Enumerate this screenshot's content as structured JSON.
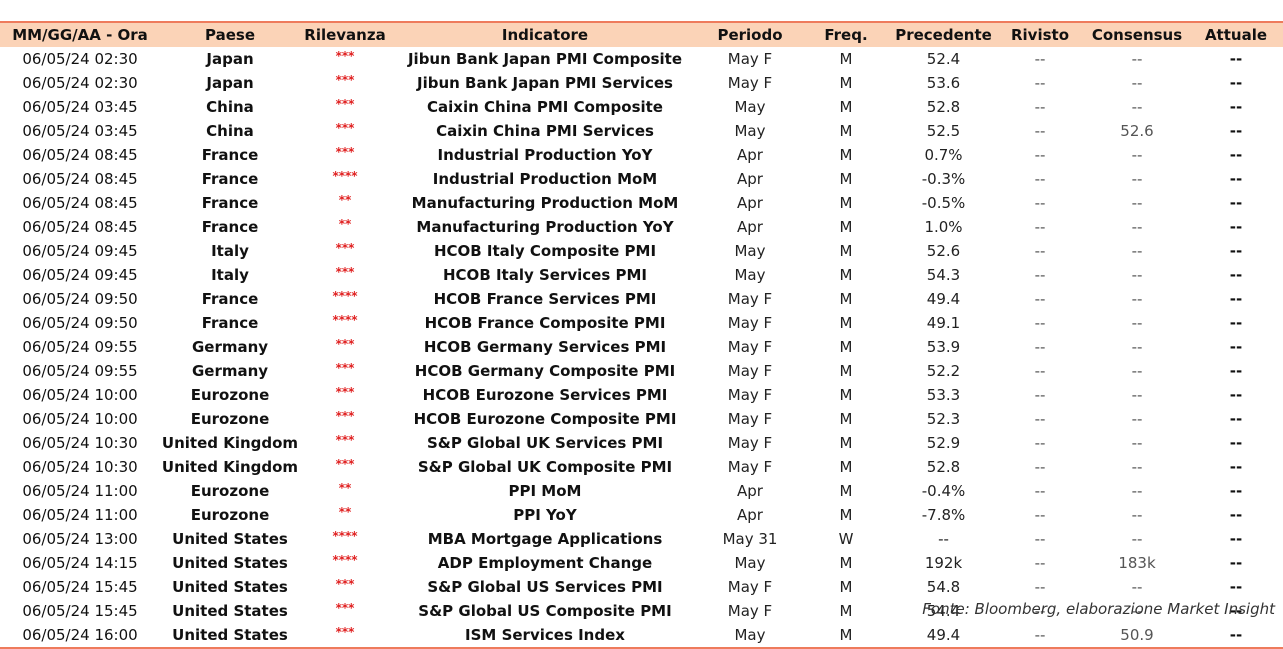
{
  "table": {
    "header": [
      "MM/GG/AA - Ora",
      "Paese",
      "Rilevanza",
      "Indicatore",
      "Periodo",
      "Freq.",
      "Precedente",
      "Rivisto",
      "Consensus",
      "Attuale"
    ],
    "rows": [
      [
        "06/05/24 02:30",
        "Japan",
        "***",
        "Jibun Bank Japan PMI Composite",
        "May F",
        "M",
        "52.4",
        "--",
        "--",
        "--"
      ],
      [
        "06/05/24 02:30",
        "Japan",
        "***",
        "Jibun Bank Japan PMI Services",
        "May F",
        "M",
        "53.6",
        "--",
        "--",
        "--"
      ],
      [
        "06/05/24 03:45",
        "China",
        "***",
        "Caixin China PMI Composite",
        "May",
        "M",
        "52.8",
        "--",
        "--",
        "--"
      ],
      [
        "06/05/24 03:45",
        "China",
        "***",
        "Caixin China PMI Services",
        "May",
        "M",
        "52.5",
        "--",
        "52.6",
        "--"
      ],
      [
        "06/05/24 08:45",
        "France",
        "***",
        "Industrial Production YoY",
        "Apr",
        "M",
        "0.7%",
        "--",
        "--",
        "--"
      ],
      [
        "06/05/24 08:45",
        "France",
        "****",
        "Industrial Production MoM",
        "Apr",
        "M",
        "-0.3%",
        "--",
        "--",
        "--"
      ],
      [
        "06/05/24 08:45",
        "France",
        "**",
        "Manufacturing Production MoM",
        "Apr",
        "M",
        "-0.5%",
        "--",
        "--",
        "--"
      ],
      [
        "06/05/24 08:45",
        "France",
        "**",
        "Manufacturing Production YoY",
        "Apr",
        "M",
        "1.0%",
        "--",
        "--",
        "--"
      ],
      [
        "06/05/24 09:45",
        "Italy",
        "***",
        "HCOB Italy Composite PMI",
        "May",
        "M",
        "52.6",
        "--",
        "--",
        "--"
      ],
      [
        "06/05/24 09:45",
        "Italy",
        "***",
        "HCOB Italy Services PMI",
        "May",
        "M",
        "54.3",
        "--",
        "--",
        "--"
      ],
      [
        "06/05/24 09:50",
        "France",
        "****",
        "HCOB France Services PMI",
        "May F",
        "M",
        "49.4",
        "--",
        "--",
        "--"
      ],
      [
        "06/05/24 09:50",
        "France",
        "****",
        "HCOB France Composite PMI",
        "May F",
        "M",
        "49.1",
        "--",
        "--",
        "--"
      ],
      [
        "06/05/24 09:55",
        "Germany",
        "***",
        "HCOB Germany Services PMI",
        "May F",
        "M",
        "53.9",
        "--",
        "--",
        "--"
      ],
      [
        "06/05/24 09:55",
        "Germany",
        "***",
        "HCOB Germany Composite PMI",
        "May F",
        "M",
        "52.2",
        "--",
        "--",
        "--"
      ],
      [
        "06/05/24 10:00",
        "Eurozone",
        "***",
        "HCOB Eurozone Services PMI",
        "May F",
        "M",
        "53.3",
        "--",
        "--",
        "--"
      ],
      [
        "06/05/24 10:00",
        "Eurozone",
        "***",
        "HCOB Eurozone Composite PMI",
        "May F",
        "M",
        "52.3",
        "--",
        "--",
        "--"
      ],
      [
        "06/05/24 10:30",
        "United Kingdom",
        "***",
        "S&P Global UK Services PMI",
        "May F",
        "M",
        "52.9",
        "--",
        "--",
        "--"
      ],
      [
        "06/05/24 10:30",
        "United Kingdom",
        "***",
        "S&P Global UK Composite PMI",
        "May F",
        "M",
        "52.8",
        "--",
        "--",
        "--"
      ],
      [
        "06/05/24 11:00",
        "Eurozone",
        "**",
        "PPI MoM",
        "Apr",
        "M",
        "-0.4%",
        "--",
        "--",
        "--"
      ],
      [
        "06/05/24 11:00",
        "Eurozone",
        "**",
        "PPI YoY",
        "Apr",
        "M",
        "-7.8%",
        "--",
        "--",
        "--"
      ],
      [
        "06/05/24 13:00",
        "United States",
        "****",
        "MBA Mortgage Applications",
        "May 31",
        "W",
        "--",
        "--",
        "--",
        "--"
      ],
      [
        "06/05/24 14:15",
        "United States",
        "****",
        "ADP Employment Change",
        "May",
        "M",
        "192k",
        "--",
        "183k",
        "--"
      ],
      [
        "06/05/24 15:45",
        "United States",
        "***",
        "S&P Global US Services PMI",
        "May F",
        "M",
        "54.8",
        "--",
        "--",
        "--"
      ],
      [
        "06/05/24 15:45",
        "United States",
        "***",
        "S&P Global US Composite PMI",
        "May F",
        "M",
        "54.4",
        "--",
        "--",
        "--"
      ],
      [
        "06/05/24 16:00",
        "United States",
        "***",
        "ISM Services Index",
        "May",
        "M",
        "49.4",
        "--",
        "50.9",
        "--"
      ]
    ]
  },
  "source": "Fonte: Bloomberg, elaborazione Market Insight"
}
